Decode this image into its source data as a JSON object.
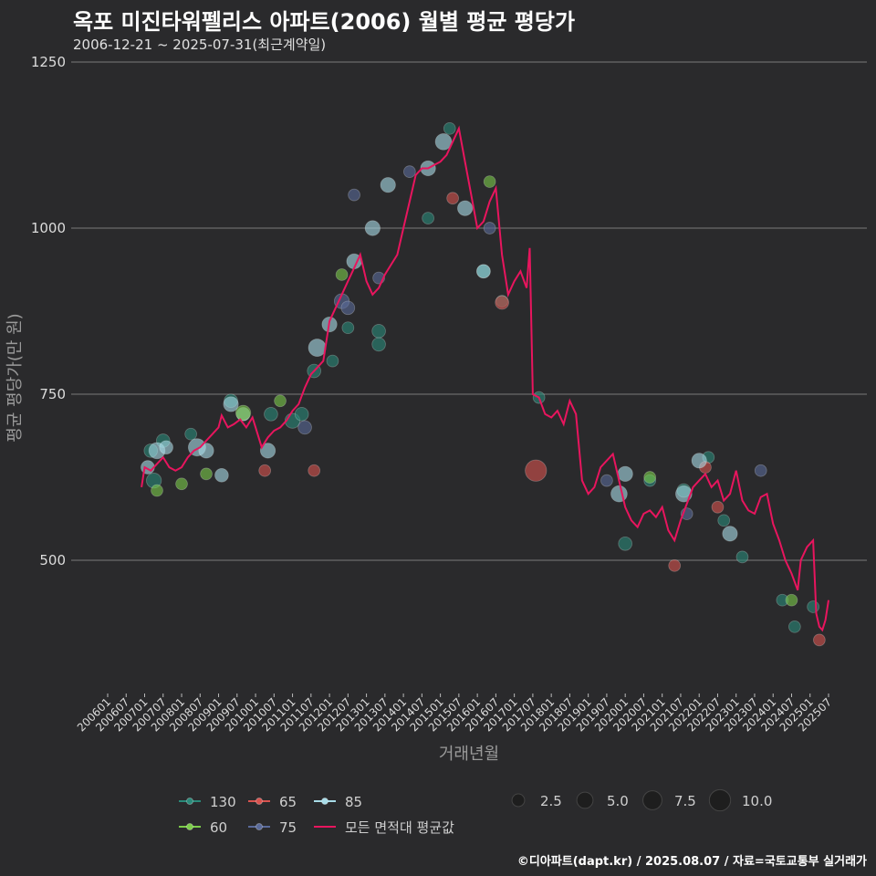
{
  "header": {
    "title": "옥포 미진타워펠리스 아파트(2006) 월별 평균 평당가",
    "subtitle": "2006-12-21 ~ 2025-07-31(최근계약일)"
  },
  "footer": {
    "credit": "©디아파트(dapt.kr) / 2025.08.07 / 자료=국토교통부 실거래가"
  },
  "colors": {
    "background": "#2a2a2c",
    "grid": "#7a7a7a",
    "avg_line": "#e8155e",
    "area_130": "#2a8a7a",
    "area_65": "#d9534f",
    "area_85": "#a8dce8",
    "area_60": "#7ccc4a",
    "area_75": "#5a6a9a"
  },
  "chart_data": {
    "type": "scatter",
    "xlabel": "거래년월",
    "ylabel": "평균 평당가(만 원)",
    "ylim": [
      300,
      1250
    ],
    "yticks": [
      500,
      750,
      1000,
      1250
    ],
    "xlim": [
      "2006-01",
      "2025-09"
    ],
    "xticks": [
      "200601",
      "200607",
      "200701",
      "200707",
      "200801",
      "200807",
      "200901",
      "200907",
      "201001",
      "201007",
      "201101",
      "201107",
      "201201",
      "201207",
      "201301",
      "201307",
      "201401",
      "201407",
      "201501",
      "201507",
      "201601",
      "201607",
      "201701",
      "201707",
      "201801",
      "201807",
      "201901",
      "201907",
      "202001",
      "202007",
      "202101",
      "202107",
      "202201",
      "202207",
      "202301",
      "202307",
      "202401",
      "202407",
      "202501",
      "202507"
    ],
    "grid": "horizontal",
    "legend": {
      "areas": [
        "130",
        "65",
        "85",
        "60",
        "75"
      ],
      "avg_label": "모든 면적대 평균값",
      "size_values": [
        "2.5",
        "5.0",
        "7.5",
        "10.0"
      ]
    },
    "series": [
      {
        "name": "모든 면적대 평균값",
        "type": "line",
        "points": [
          [
            "2006-12",
            610
          ],
          [
            "2007-01",
            640
          ],
          [
            "2007-03",
            635
          ],
          [
            "2007-05",
            645
          ],
          [
            "2007-07",
            655
          ],
          [
            "2007-09",
            640
          ],
          [
            "2007-11",
            635
          ],
          [
            "2008-01",
            640
          ],
          [
            "2008-03",
            655
          ],
          [
            "2008-05",
            665
          ],
          [
            "2008-07",
            670
          ],
          [
            "2008-09",
            680
          ],
          [
            "2008-11",
            690
          ],
          [
            "2009-01",
            700
          ],
          [
            "2009-02",
            718
          ],
          [
            "2009-04",
            700
          ],
          [
            "2009-06",
            705
          ],
          [
            "2009-08",
            712
          ],
          [
            "2009-10",
            700
          ],
          [
            "2009-12",
            715
          ],
          [
            "2010-01",
            700
          ],
          [
            "2010-03",
            670
          ],
          [
            "2010-05",
            685
          ],
          [
            "2010-07",
            695
          ],
          [
            "2010-09",
            700
          ],
          [
            "2010-11",
            710
          ],
          [
            "2011-01",
            725
          ],
          [
            "2011-03",
            735
          ],
          [
            "2011-05",
            760
          ],
          [
            "2011-07",
            780
          ],
          [
            "2011-09",
            790
          ],
          [
            "2011-11",
            800
          ],
          [
            "2012-01",
            860
          ],
          [
            "2012-03",
            880
          ],
          [
            "2012-05",
            900
          ],
          [
            "2012-07",
            920
          ],
          [
            "2012-09",
            940
          ],
          [
            "2012-11",
            960
          ],
          [
            "2013-01",
            920
          ],
          [
            "2013-03",
            900
          ],
          [
            "2013-05",
            910
          ],
          [
            "2013-07",
            930
          ],
          [
            "2013-09",
            945
          ],
          [
            "2013-11",
            960
          ],
          [
            "2014-01",
            1000
          ],
          [
            "2014-03",
            1040
          ],
          [
            "2014-05",
            1080
          ],
          [
            "2014-07",
            1090
          ],
          [
            "2014-09",
            1090
          ],
          [
            "2014-11",
            1095
          ],
          [
            "2015-01",
            1100
          ],
          [
            "2015-03",
            1110
          ],
          [
            "2015-05",
            1130
          ],
          [
            "2015-07",
            1150
          ],
          [
            "2015-09",
            1100
          ],
          [
            "2015-11",
            1050
          ],
          [
            "2016-01",
            1000
          ],
          [
            "2016-03",
            1010
          ],
          [
            "2016-05",
            1040
          ],
          [
            "2016-07",
            1060
          ],
          [
            "2016-09",
            960
          ],
          [
            "2016-11",
            900
          ],
          [
            "2017-01",
            920
          ],
          [
            "2017-03",
            935
          ],
          [
            "2017-05",
            910
          ],
          [
            "2017-06",
            970
          ],
          [
            "2017-07",
            750
          ],
          [
            "2017-09",
            745
          ],
          [
            "2017-11",
            720
          ],
          [
            "2018-01",
            715
          ],
          [
            "2018-03",
            725
          ],
          [
            "2018-05",
            705
          ],
          [
            "2018-07",
            740
          ],
          [
            "2018-09",
            720
          ],
          [
            "2018-11",
            620
          ],
          [
            "2019-01",
            600
          ],
          [
            "2019-03",
            610
          ],
          [
            "2019-05",
            640
          ],
          [
            "2019-07",
            650
          ],
          [
            "2019-09",
            660
          ],
          [
            "2019-11",
            620
          ],
          [
            "2020-01",
            580
          ],
          [
            "2020-03",
            560
          ],
          [
            "2020-05",
            550
          ],
          [
            "2020-07",
            570
          ],
          [
            "2020-09",
            575
          ],
          [
            "2020-11",
            565
          ],
          [
            "2021-01",
            580
          ],
          [
            "2021-03",
            545
          ],
          [
            "2021-05",
            530
          ],
          [
            "2021-07",
            560
          ],
          [
            "2021-09",
            585
          ],
          [
            "2021-11",
            610
          ],
          [
            "2022-01",
            620
          ],
          [
            "2022-03",
            630
          ],
          [
            "2022-05",
            610
          ],
          [
            "2022-07",
            620
          ],
          [
            "2022-09",
            590
          ],
          [
            "2022-11",
            600
          ],
          [
            "2023-01",
            635
          ],
          [
            "2023-03",
            590
          ],
          [
            "2023-05",
            575
          ],
          [
            "2023-07",
            570
          ],
          [
            "2023-09",
            595
          ],
          [
            "2023-11",
            600
          ],
          [
            "2024-01",
            555
          ],
          [
            "2024-03",
            530
          ],
          [
            "2024-05",
            500
          ],
          [
            "2024-07",
            480
          ],
          [
            "2024-09",
            455
          ],
          [
            "2024-10",
            500
          ],
          [
            "2024-12",
            520
          ],
          [
            "2025-02",
            530
          ],
          [
            "2025-03",
            420
          ],
          [
            "2025-04",
            400
          ],
          [
            "2025-05",
            395
          ],
          [
            "2025-06",
            410
          ],
          [
            "2025-07",
            440
          ]
        ]
      },
      {
        "name": "130",
        "type": "scatter",
        "points": [
          [
            "2007-03",
            665,
            3
          ],
          [
            "2007-04",
            620,
            4
          ],
          [
            "2007-07",
            680,
            3
          ],
          [
            "2008-04",
            690,
            2
          ],
          [
            "2009-05",
            740,
            3
          ],
          [
            "2010-06",
            720,
            3
          ],
          [
            "2011-01",
            710,
            4
          ],
          [
            "2011-04",
            720,
            3
          ],
          [
            "2011-08",
            785,
            3
          ],
          [
            "2012-02",
            800,
            2
          ],
          [
            "2012-07",
            850,
            2
          ],
          [
            "2013-05",
            845,
            3
          ],
          [
            "2013-05",
            825,
            3
          ],
          [
            "2014-09",
            1015,
            2
          ],
          [
            "2015-04",
            1150,
            2
          ],
          [
            "2016-03",
            935,
            3
          ],
          [
            "2016-09",
            890,
            2
          ],
          [
            "2017-09",
            745,
            2
          ],
          [
            "2020-01",
            525,
            3
          ],
          [
            "2020-09",
            620,
            2
          ],
          [
            "2021-08",
            605,
            3
          ],
          [
            "2022-04",
            655,
            2
          ],
          [
            "2022-09",
            560,
            2
          ],
          [
            "2023-03",
            505,
            2
          ],
          [
            "2024-04",
            440,
            2
          ],
          [
            "2024-08",
            400,
            2
          ],
          [
            "2025-02",
            430,
            2
          ]
        ]
      },
      {
        "name": "65",
        "type": "scatter",
        "points": [
          [
            "2010-04",
            635,
            2
          ],
          [
            "2011-08",
            635,
            2
          ],
          [
            "2015-05",
            1045,
            2
          ],
          [
            "2016-09",
            888,
            3
          ],
          [
            "2017-08",
            635,
            10
          ],
          [
            "2021-05",
            492,
            2
          ],
          [
            "2022-03",
            640,
            2
          ],
          [
            "2022-07",
            580,
            2
          ],
          [
            "2025-04",
            380,
            2
          ]
        ]
      },
      {
        "name": "85",
        "type": "scatter",
        "points": [
          [
            "2007-02",
            640,
            3
          ],
          [
            "2007-05",
            665,
            5
          ],
          [
            "2007-08",
            670,
            3
          ],
          [
            "2008-06",
            670,
            6
          ],
          [
            "2008-09",
            665,
            4
          ],
          [
            "2009-02",
            628,
            3
          ],
          [
            "2009-05",
            735,
            4
          ],
          [
            "2009-09",
            720,
            3
          ],
          [
            "2010-05",
            665,
            4
          ],
          [
            "2011-09",
            820,
            6
          ],
          [
            "2012-01",
            855,
            4
          ],
          [
            "2012-09",
            950,
            4
          ],
          [
            "2013-03",
            1000,
            4
          ],
          [
            "2013-08",
            1065,
            4
          ],
          [
            "2014-09",
            1090,
            4
          ],
          [
            "2015-02",
            1130,
            5
          ],
          [
            "2015-09",
            1030,
            4
          ],
          [
            "2016-03",
            935,
            3
          ],
          [
            "2019-11",
            600,
            5
          ],
          [
            "2020-01",
            630,
            4
          ],
          [
            "2021-08",
            600,
            5
          ],
          [
            "2022-01",
            650,
            4
          ],
          [
            "2022-11",
            540,
            4
          ]
        ]
      },
      {
        "name": "60",
        "type": "scatter",
        "points": [
          [
            "2007-05",
            605,
            2
          ],
          [
            "2008-01",
            615,
            2
          ],
          [
            "2008-09",
            630,
            2
          ],
          [
            "2009-09",
            722,
            4
          ],
          [
            "2010-09",
            740,
            2
          ],
          [
            "2012-05",
            930,
            2
          ],
          [
            "2016-05",
            1070,
            2
          ],
          [
            "2020-09",
            625,
            2
          ],
          [
            "2024-07",
            440,
            2
          ]
        ]
      },
      {
        "name": "75",
        "type": "scatter",
        "points": [
          [
            "2011-05",
            700,
            3
          ],
          [
            "2012-05",
            890,
            4
          ],
          [
            "2012-07",
            880,
            3
          ],
          [
            "2012-09",
            1050,
            2
          ],
          [
            "2013-05",
            925,
            2
          ],
          [
            "2014-03",
            1085,
            2
          ],
          [
            "2016-05",
            1000,
            2
          ],
          [
            "2019-07",
            620,
            2
          ],
          [
            "2021-09",
            570,
            2
          ],
          [
            "2023-09",
            635,
            2
          ]
        ]
      }
    ]
  }
}
